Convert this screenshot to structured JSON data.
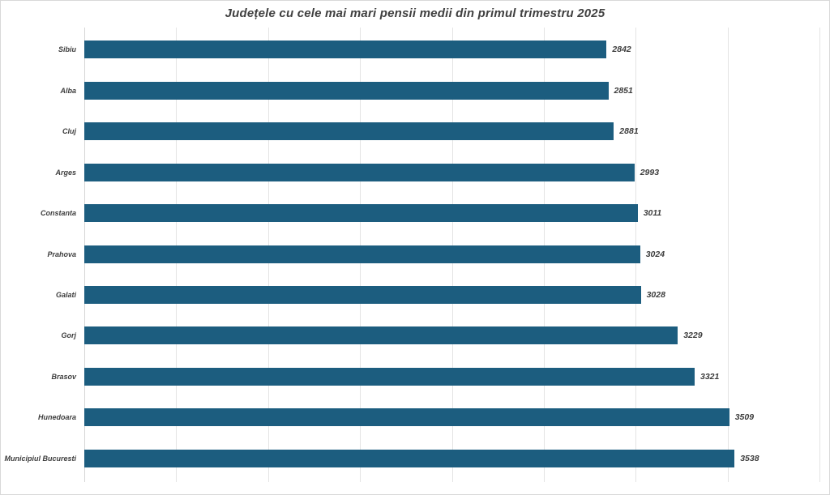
{
  "title": "Județele cu cele mai mari pensii medii din primul trimestru 2025",
  "colors": {
    "bar": "#1c5d7f",
    "title": "#404040",
    "label": "#3d3d3d",
    "tick": "#9a9a9a",
    "gridline": "#e4e4e4",
    "axis": "#d6d6d6",
    "border": "#d9d9d9"
  },
  "chart_data": {
    "type": "bar",
    "orientation": "horizontal",
    "title": "Județele cu cele mai mari pensii medii din primul trimestru 2025",
    "categories": [
      "Sibiu",
      "Alba",
      "Cluj",
      "Arges",
      "Constanta",
      "Prahova",
      "Galati",
      "Gorj",
      "Brasov",
      "Hunedoara",
      "Municipiul Bucuresti"
    ],
    "values": [
      2842,
      2851,
      2881,
      2993,
      3011,
      3024,
      3028,
      3229,
      3321,
      3509,
      3538
    ],
    "value_labels": [
      "2842",
      "2851",
      "2881",
      "2993",
      "3011",
      "3024",
      "3028",
      "3229",
      "3321",
      "3509",
      "3538"
    ],
    "xlabel": "",
    "ylabel": "",
    "xlim": [
      0,
      4000
    ],
    "x_ticks": [
      0,
      500,
      1000,
      1500,
      2000,
      2500,
      3000,
      3500,
      4000
    ],
    "x_tick_labels": [
      "0",
      "500",
      "1000",
      "1500",
      "2000",
      "2500",
      "3000",
      "3500",
      "4000"
    ],
    "grid": "vertical",
    "legend": "none",
    "bar_order": "descending-from-bottom"
  }
}
